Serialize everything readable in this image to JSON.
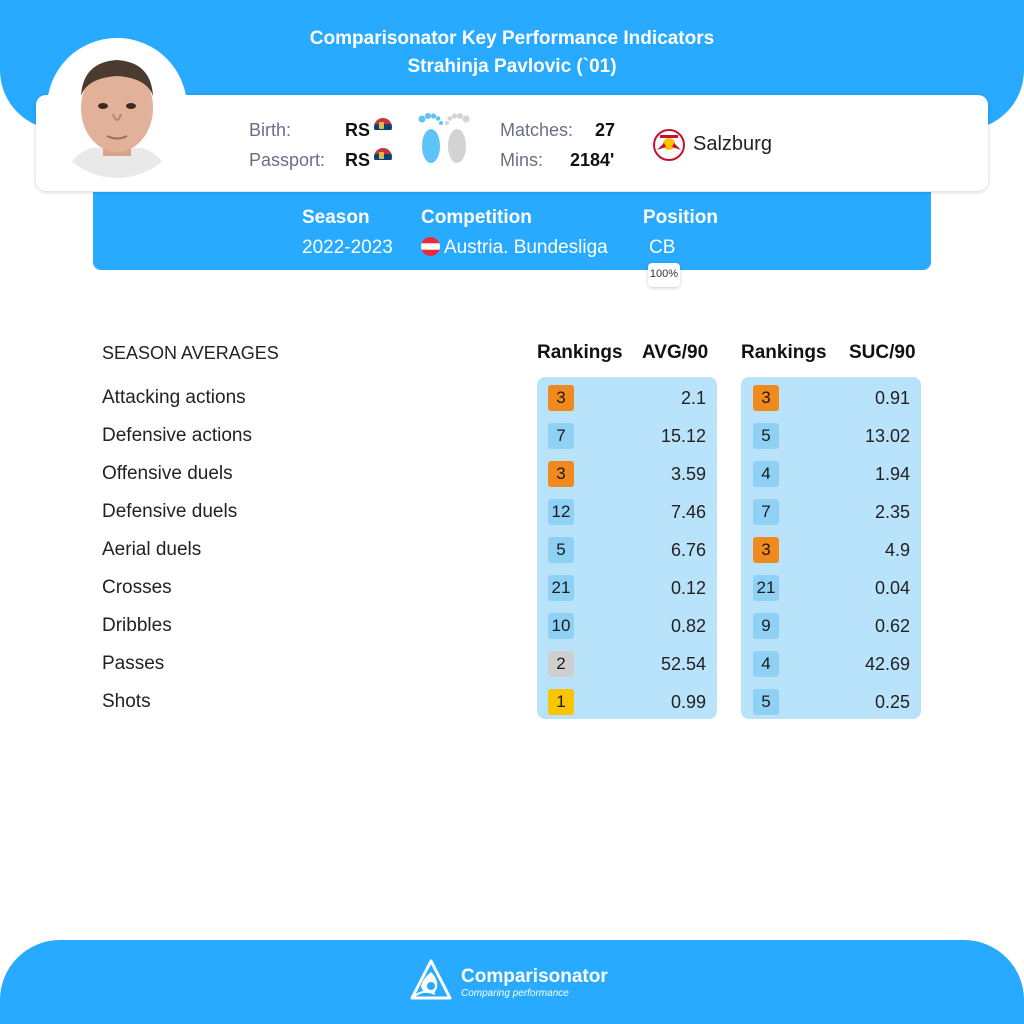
{
  "header": {
    "title": "Comparisonator Key Performance Indicators",
    "player": "Strahinja Pavlovic (`01)"
  },
  "player_info": {
    "birth_label": "Birth:",
    "birth_value": "RS",
    "passport_label": "Passport:",
    "passport_value": "RS",
    "matches_label": "Matches:",
    "matches_value": "27",
    "mins_label": "Mins:",
    "mins_value": "2184'",
    "club": "Salzburg"
  },
  "season_box": {
    "season_label": "Season",
    "season_value": "2022-2023",
    "competition_label": "Competition",
    "competition_value": "Austria. Bundesliga",
    "position_label": "Position",
    "position_value": "CB",
    "position_share": "100%"
  },
  "table": {
    "section_title": "SEASON AVERAGES",
    "headers": {
      "rank1": "Rankings",
      "avg": "AVG/90",
      "rank2": "Rankings",
      "suc": "SUC/90"
    },
    "rows": [
      {
        "label": "Attacking actions",
        "rank_avg": "3",
        "avg": "2.1",
        "rank_suc": "3",
        "suc": "0.91"
      },
      {
        "label": "Defensive actions",
        "rank_avg": "7",
        "avg": "15.12",
        "rank_suc": "5",
        "suc": "13.02"
      },
      {
        "label": "Offensive duels",
        "rank_avg": "3",
        "avg": "3.59",
        "rank_suc": "4",
        "suc": "1.94"
      },
      {
        "label": "Defensive duels",
        "rank_avg": "12",
        "avg": "7.46",
        "rank_suc": "7",
        "suc": "2.35"
      },
      {
        "label": "Aerial duels",
        "rank_avg": "5",
        "avg": "6.76",
        "rank_suc": "3",
        "suc": "4.9"
      },
      {
        "label": "Crosses",
        "rank_avg": "21",
        "avg": "0.12",
        "rank_suc": "21",
        "suc": "0.04"
      },
      {
        "label": "Dribbles",
        "rank_avg": "10",
        "avg": "0.82",
        "rank_suc": "9",
        "suc": "0.62"
      },
      {
        "label": "Passes",
        "rank_avg": "2",
        "avg": "52.54",
        "rank_suc": "4",
        "suc": "42.69"
      },
      {
        "label": "Shots",
        "rank_avg": "1",
        "avg": "0.99",
        "rank_suc": "5",
        "suc": "0.25"
      }
    ]
  },
  "colors": {
    "primary": "#27aaff",
    "panel": "#b9e3fb",
    "rank_gold": "#f9c400",
    "rank_silver": "#cfcfcf",
    "rank_bronze": "#f08a1c",
    "rank_default": "#8fd0f5"
  },
  "footer": {
    "brand": "Comparisonator",
    "tagline": "Comparing performance"
  }
}
